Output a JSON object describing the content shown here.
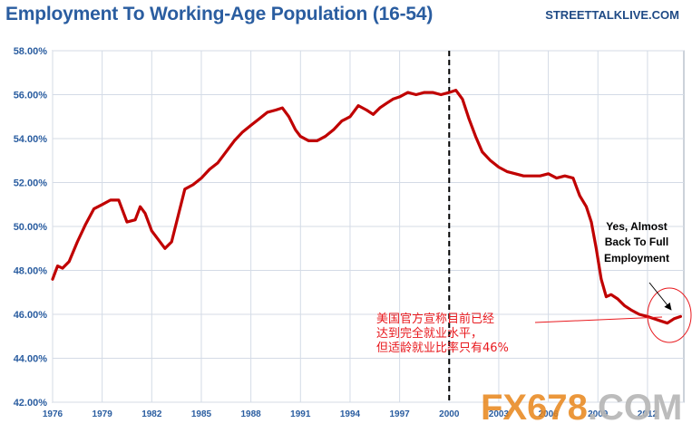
{
  "chart_data": {
    "type": "line",
    "title": "Employment To Working-Age Population (16-54)",
    "xlabel": "",
    "ylabel": "",
    "ylim": [
      42,
      58
    ],
    "xlim": [
      1976,
      2014.2
    ],
    "grid": true,
    "y_ticks": [
      "42.00%",
      "44.00%",
      "46.00%",
      "48.00%",
      "50.00%",
      "52.00%",
      "54.00%",
      "56.00%",
      "58.00%"
    ],
    "y_tick_values": [
      42,
      44,
      46,
      48,
      50,
      52,
      54,
      56,
      58
    ],
    "x_ticks": [
      "1976",
      "1979",
      "1982",
      "1985",
      "1988",
      "1991",
      "1994",
      "1997",
      "2000",
      "2003",
      "2006",
      "2009",
      "2012"
    ],
    "x_tick_values": [
      1976,
      1979,
      1982,
      1985,
      1988,
      1991,
      1994,
      1997,
      2000,
      2003,
      2006,
      2009,
      2012
    ],
    "reference_line_x": 2000,
    "series": [
      {
        "color": "#c00000",
        "x": [
          1976.0,
          1976.3,
          1976.6,
          1977.0,
          1977.5,
          1978.0,
          1978.5,
          1979.0,
          1979.5,
          1980.0,
          1980.5,
          1981.0,
          1981.3,
          1981.6,
          1982.0,
          1982.4,
          1982.8,
          1983.2,
          1983.6,
          1984.0,
          1984.5,
          1985.0,
          1985.5,
          1986.0,
          1986.5,
          1987.0,
          1987.5,
          1988.0,
          1988.5,
          1989.0,
          1989.5,
          1989.9,
          1990.3,
          1990.7,
          1991.0,
          1991.5,
          1992.0,
          1992.5,
          1993.0,
          1993.5,
          1994.0,
          1994.5,
          1995.0,
          1995.4,
          1995.8,
          1996.2,
          1996.6,
          1997.0,
          1997.5,
          1998.0,
          1998.5,
          1999.0,
          1999.5,
          2000.0,
          2000.4,
          2000.8,
          2001.2,
          2001.6,
          2002.0,
          2002.5,
          2003.0,
          2003.5,
          2004.0,
          2004.5,
          2005.0,
          2005.5,
          2006.0,
          2006.5,
          2007.0,
          2007.5,
          2007.9,
          2008.3,
          2008.6,
          2008.9,
          2009.2,
          2009.5,
          2009.8,
          2010.2,
          2010.6,
          2011.0,
          2011.5,
          2012.0,
          2012.4,
          2012.8,
          2013.2,
          2013.6,
          2014.0
        ],
        "values": [
          47.6,
          48.2,
          48.1,
          48.4,
          49.3,
          50.1,
          50.8,
          51.0,
          51.2,
          51.2,
          50.2,
          50.3,
          50.9,
          50.6,
          49.8,
          49.4,
          49.0,
          49.3,
          50.5,
          51.7,
          51.9,
          52.2,
          52.6,
          52.9,
          53.4,
          53.9,
          54.3,
          54.6,
          54.9,
          55.2,
          55.3,
          55.4,
          55.0,
          54.4,
          54.1,
          53.9,
          53.9,
          54.1,
          54.4,
          54.8,
          55.0,
          55.5,
          55.3,
          55.1,
          55.4,
          55.6,
          55.8,
          55.9,
          56.1,
          56.0,
          56.1,
          56.1,
          56.0,
          56.1,
          56.2,
          55.8,
          54.9,
          54.1,
          53.4,
          53.0,
          52.7,
          52.5,
          52.4,
          52.3,
          52.3,
          52.3,
          52.4,
          52.2,
          52.3,
          52.2,
          51.4,
          50.9,
          50.2,
          49.0,
          47.6,
          46.8,
          46.9,
          46.7,
          46.4,
          46.2,
          46.0,
          45.9,
          45.8,
          45.7,
          45.6,
          45.8,
          45.9
        ]
      }
    ],
    "annotations": {
      "en_lines": [
        "Yes, Almost",
        "Back To Full",
        "Employment"
      ],
      "cn_lines": [
        "美国官方宣称目前已经",
        "达到完全就业水平，",
        "但适龄就业比率只有46%"
      ]
    }
  },
  "source": "STREETTALKLIVE.COM",
  "watermark": {
    "part1": "FX678",
    "part2": ".COM"
  }
}
